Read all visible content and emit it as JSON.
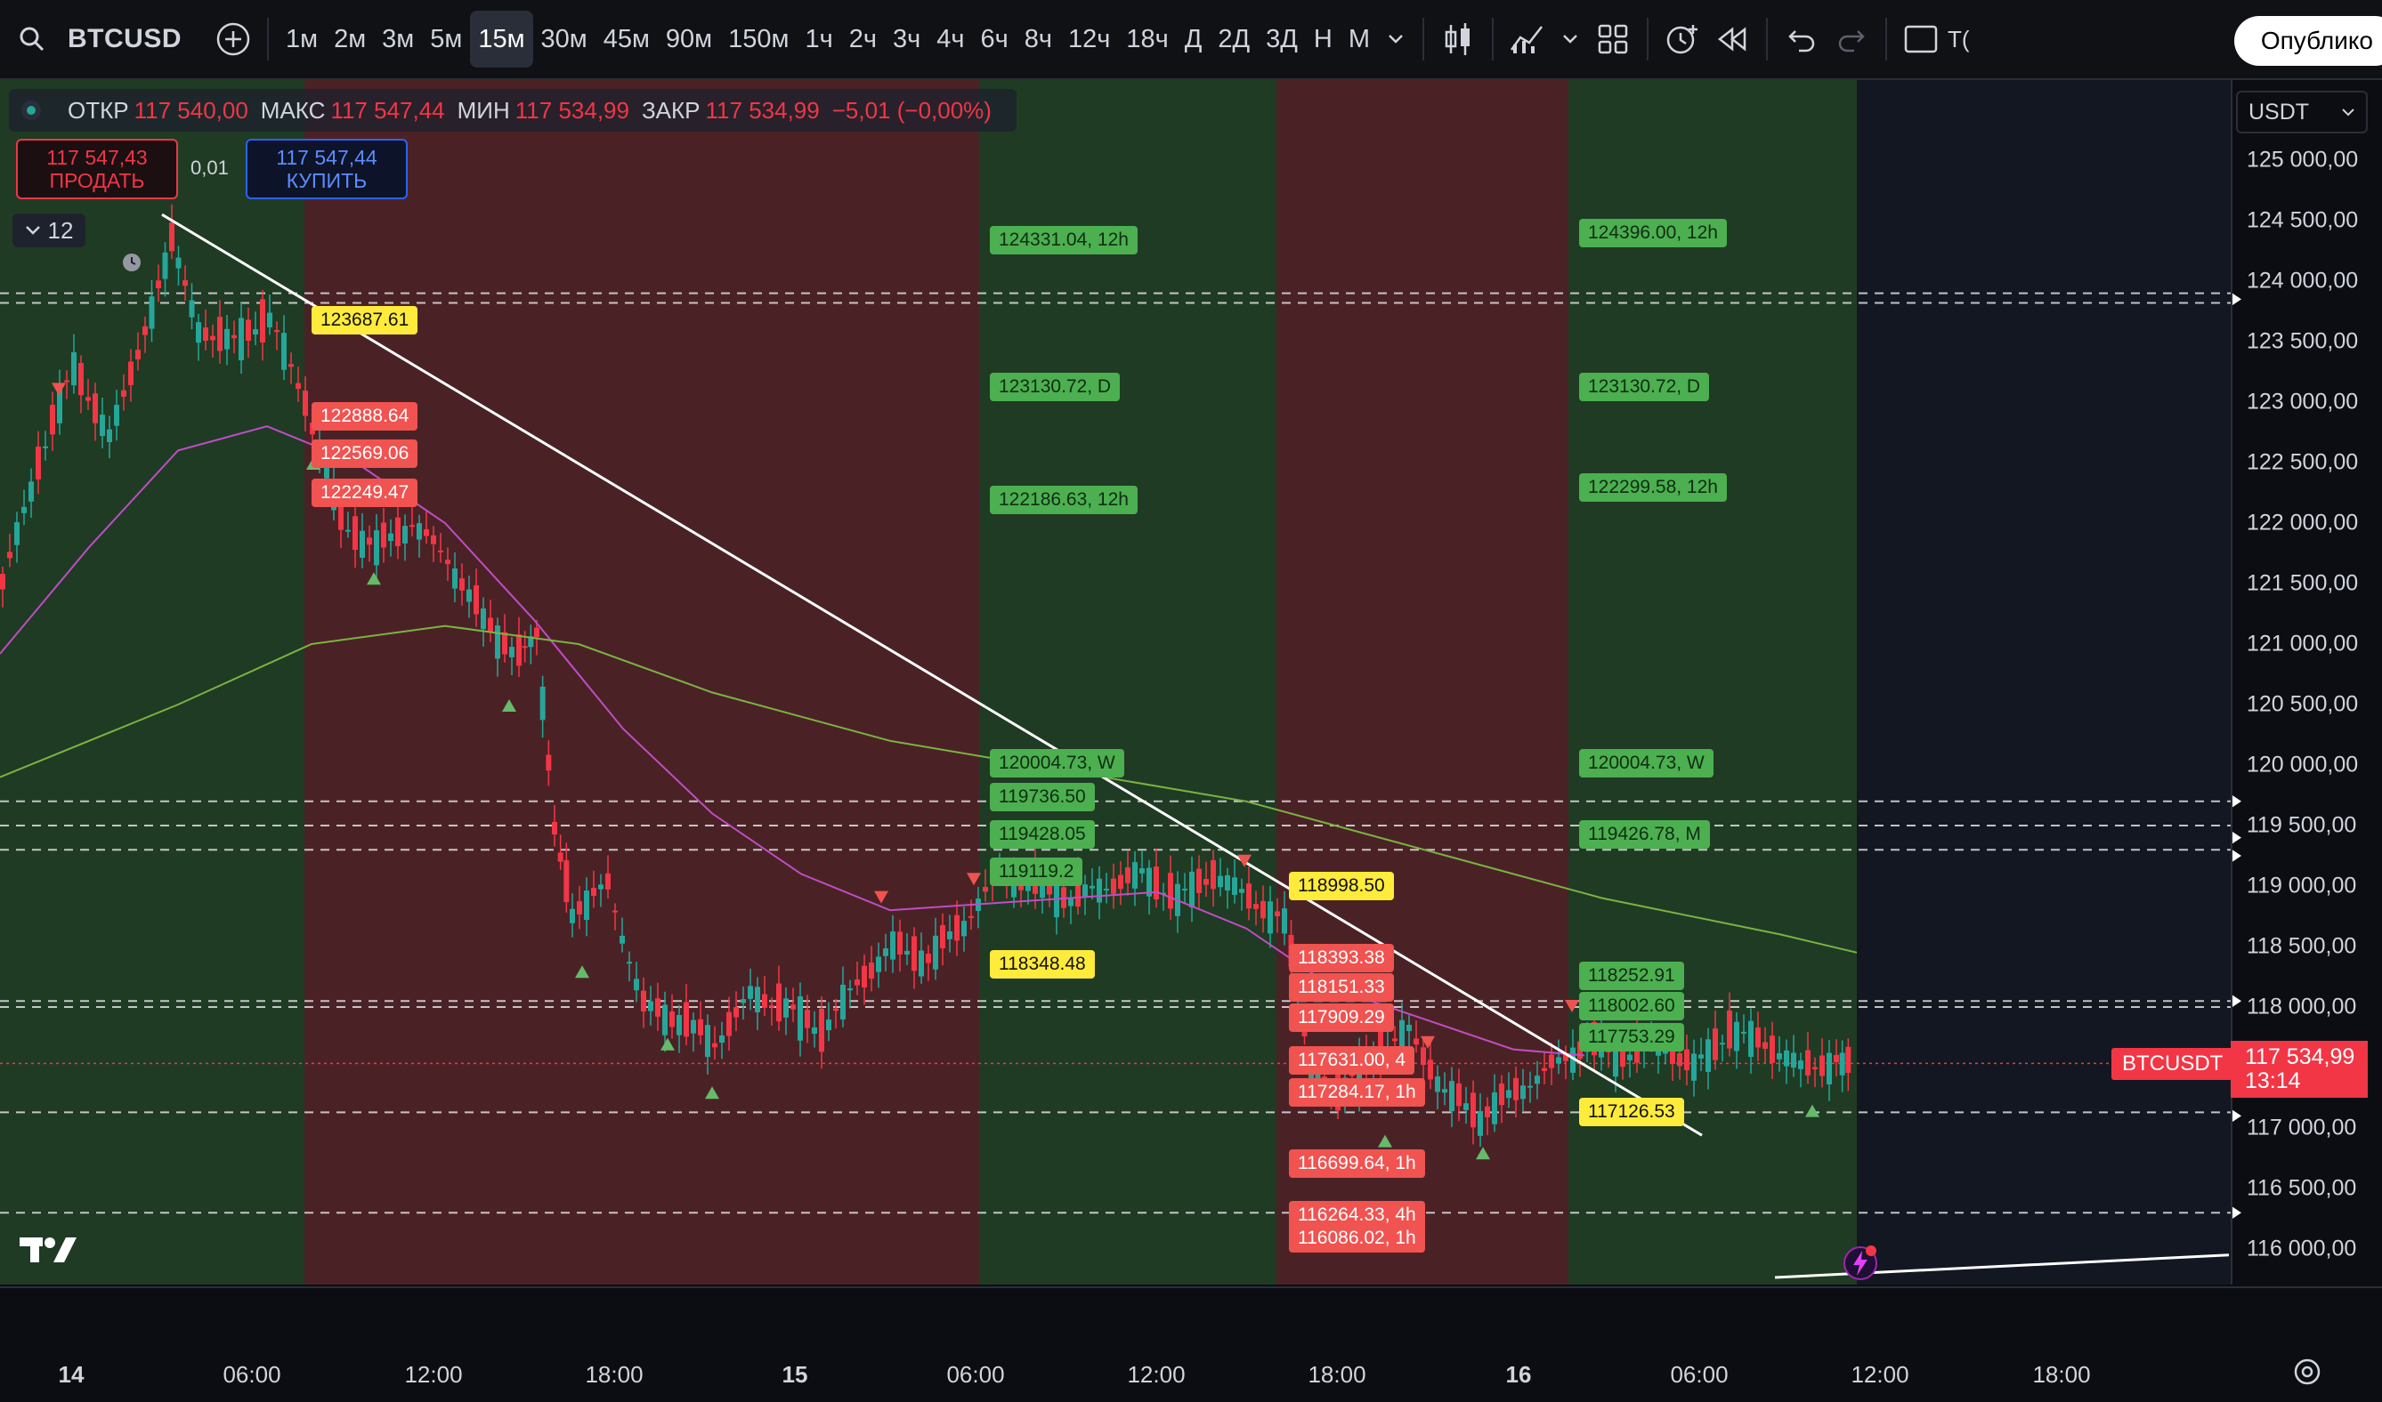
{
  "toolbar": {
    "symbol": "BTCUSD",
    "timeframes": [
      "1м",
      "2м",
      "3м",
      "5м",
      "15м",
      "30м",
      "45м",
      "90м",
      "150м",
      "1ч",
      "2ч",
      "3ч",
      "4ч",
      "6ч",
      "8ч",
      "12ч",
      "18ч",
      "Д",
      "2Д",
      "3Д",
      "Н",
      "М"
    ],
    "active_timeframe": "15м",
    "publish_label": "Опублико",
    "cut_label": "Т("
  },
  "legend": {
    "open_label": "ОТКР",
    "open": "117 540,00",
    "high_label": "МАКС",
    "high": "117 547,44",
    "low_label": "МИН",
    "low": "117 534,99",
    "close_label": "ЗАКР",
    "close": "117 534,99",
    "change": "−5,01 (−0,00%)"
  },
  "trade": {
    "sell_price": "117 547,43",
    "sell_label": "ПРОДАТЬ",
    "qty": "0,01",
    "buy_price": "117 547,44",
    "buy_label": "КУПИТЬ"
  },
  "indicators_count": "12",
  "currency": "USDT",
  "price_axis": [
    "125 000,00",
    "124 500,00",
    "124 000,00",
    "123 500,00",
    "123 000,00",
    "122 500,00",
    "122 000,00",
    "121 500,00",
    "121 000,00",
    "120 500,00",
    "120 000,00",
    "119 500,00",
    "119 000,00",
    "118 500,00",
    "118 000,00",
    "117 500,00",
    "117 000,00",
    "116 500,00",
    "116 000,00"
  ],
  "time_axis": [
    "14",
    "06:00",
    "12:00",
    "18:00",
    "15",
    "06:00",
    "12:00",
    "18:00",
    "16",
    "06:00",
    "12:00",
    "18:00"
  ],
  "last_price": {
    "symbol": "BTCUSDT",
    "price": "117 534,99",
    "countdown": "13:14"
  },
  "level_labels": [
    {
      "text": "124331.04, 12h",
      "kind": "g"
    },
    {
      "text": "124396.00, 12h",
      "kind": "g"
    },
    {
      "text": "123687.61",
      "kind": "y"
    },
    {
      "text": "123130.72, D",
      "kind": "g"
    },
    {
      "text": "123130.72, D",
      "kind": "g"
    },
    {
      "text": "122888.64",
      "kind": "r"
    },
    {
      "text": "122569.06",
      "kind": "r"
    },
    {
      "text": "122249.47",
      "kind": "r"
    },
    {
      "text": "122186.63, 12h",
      "kind": "g"
    },
    {
      "text": "122299.58, 12h",
      "kind": "g"
    },
    {
      "text": "120004.73, W",
      "kind": "g"
    },
    {
      "text": "120004.73, W",
      "kind": "g"
    },
    {
      "text": "119736.50",
      "kind": "g"
    },
    {
      "text": "119428.05",
      "kind": "g"
    },
    {
      "text": "119426.78, M",
      "kind": "g"
    },
    {
      "text": "119119.2",
      "kind": "g"
    },
    {
      "text": "118998.50",
      "kind": "y"
    },
    {
      "text": "118348.48",
      "kind": "y"
    },
    {
      "text": "118393.38",
      "kind": "r"
    },
    {
      "text": "118252.91",
      "kind": "g"
    },
    {
      "text": "118151.33",
      "kind": "r"
    },
    {
      "text": "118002.60",
      "kind": "g"
    },
    {
      "text": "117909.29",
      "kind": "r"
    },
    {
      "text": "117753.29",
      "kind": "g"
    },
    {
      "text": "117631.00, 4",
      "kind": "r"
    },
    {
      "text": "117284.17, 1h",
      "kind": "r"
    },
    {
      "text": "117126.53",
      "kind": "y"
    },
    {
      "text": "116699.64, 1h",
      "kind": "r"
    },
    {
      "text": "116264.33, 4h",
      "kind": "r"
    },
    {
      "text": "116086.02, 1h",
      "kind": "r"
    }
  ],
  "colors": {
    "up": "#26a69a",
    "down": "#f23645",
    "green_zone": "#1f3b24",
    "red_zone": "#4a2226",
    "ma_fast": "#c04dc4",
    "ma_slow": "#7cb342"
  }
}
